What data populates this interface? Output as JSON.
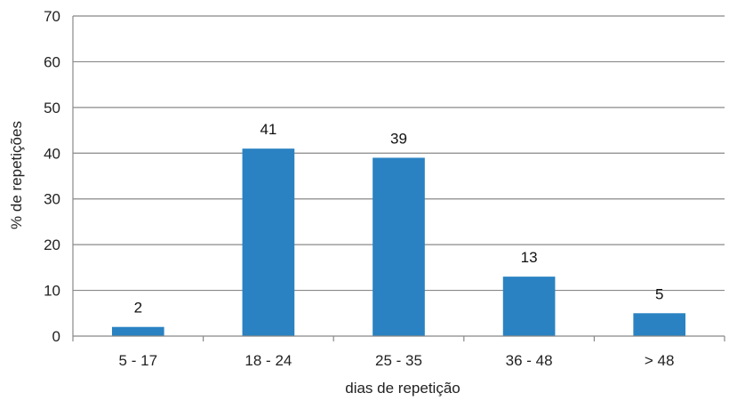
{
  "chart_data": {
    "type": "bar",
    "categories": [
      "5 - 17",
      "18 - 24",
      "25 - 35",
      "36 - 48",
      "> 48"
    ],
    "values": [
      2,
      41,
      39,
      13,
      5
    ],
    "data_labels": [
      "2",
      "41",
      "39",
      "13",
      "5"
    ],
    "xlabel": "dias de repetição",
    "ylabel": "% de repetições",
    "ylim": [
      0,
      70
    ],
    "yticks": [
      0,
      10,
      20,
      30,
      40,
      50,
      60,
      70
    ],
    "ytick_labels": [
      "0",
      "10",
      "20",
      "30",
      "40",
      "50",
      "60",
      "70"
    ],
    "grid": true,
    "legend": "none",
    "bar_color": "#2a82c2",
    "grid_color": "#888888"
  }
}
